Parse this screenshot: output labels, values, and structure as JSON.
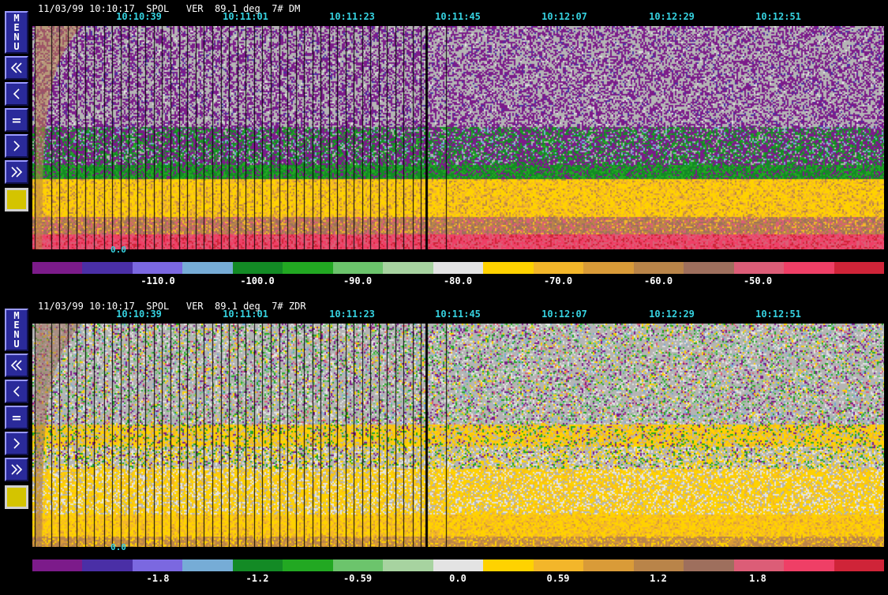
{
  "toolbar": {
    "menu_letters": [
      "M",
      "E",
      "N",
      "U"
    ],
    "first_icon": "double-chevron-left-icon",
    "prev_icon": "chevron-left-icon",
    "equal_label": "=",
    "next_icon": "chevron-right-icon",
    "last_icon": "double-chevron-right-icon",
    "color_swatch": "#d4c400"
  },
  "palette": [
    "#7c1b8a",
    "#4a2fa6",
    "#7b68e0",
    "#76acd6",
    "#138a25",
    "#22a822",
    "#6cc46c",
    "#a7d3a0",
    "#e3e3e3",
    "#ffd200",
    "#f3b62a",
    "#d99b38",
    "#b98449",
    "#9e6f5d",
    "#dc5d77",
    "#ef3f66",
    "#cf2438"
  ],
  "panels": [
    {
      "header": "11/03/99 10:10:17  SPOL   VER  89.1 deg  7# DM",
      "times": [
        "10:10:39",
        "10:11:01",
        "10:11:23",
        "10:11:45",
        "10:12:07",
        "10:12:29",
        "10:12:51"
      ],
      "range_label": "0.0",
      "colorbar_labels": [
        "-110.0",
        "-100.0",
        "-90.0",
        "-80.0",
        "-70.0",
        "-60.0",
        "-50.0"
      ]
    },
    {
      "header": "11/03/99 10:10:17  SPOL   VER  89.1 deg  7# ZDR",
      "times": [
        "10:10:39",
        "10:11:01",
        "10:11:23",
        "10:11:45",
        "10:12:07",
        "10:12:29",
        "10:12:51"
      ],
      "range_label": "0.0",
      "colorbar_labels": [
        "-1.8",
        "-1.2",
        "-0.59",
        "0.0",
        "0.59",
        "1.2",
        "1.8"
      ]
    }
  ],
  "chart_data": [
    {
      "type": "heatmap",
      "title": "11/03/99 10:10:17  SPOL   VER  89.1 deg  7# DM",
      "field": "DM",
      "x": [
        "10:10:39",
        "10:11:01",
        "10:11:23",
        "10:11:45",
        "10:12:07",
        "10:12:29",
        "10:12:51"
      ],
      "y_ticks": [
        "0.0"
      ],
      "colorbar": [
        -110.0,
        -100.0,
        -90.0,
        -80.0,
        -70.0,
        -60.0,
        -50.0
      ],
      "legend": "bottom"
    },
    {
      "type": "heatmap",
      "title": "11/03/99 10:10:17  SPOL   VER  89.1 deg  7# ZDR",
      "field": "ZDR",
      "x": [
        "10:10:39",
        "10:11:01",
        "10:11:23",
        "10:11:45",
        "10:12:07",
        "10:12:29",
        "10:12:51"
      ],
      "y_ticks": [
        "0.0"
      ],
      "colorbar": [
        -1.8,
        -1.2,
        -0.59,
        0.0,
        0.59,
        1.2,
        1.8
      ],
      "legend": "bottom"
    }
  ]
}
